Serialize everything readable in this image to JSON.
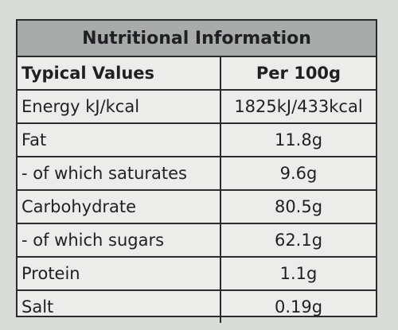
{
  "header": {
    "title": "Nutritional Information"
  },
  "table": {
    "columns": [
      "Typical Values",
      "Per 100g"
    ],
    "rows": [
      [
        "Energy kJ/kcal",
        "1825kJ/433kcal"
      ],
      [
        "Fat",
        "11.8g"
      ],
      [
        "- of which saturates",
        "9.6g"
      ],
      [
        "Carbohydrate",
        "80.5g"
      ],
      [
        "- of which sugars",
        "62.1g"
      ],
      [
        "Protein",
        "1.1g"
      ],
      [
        "Salt",
        "0.19g"
      ]
    ]
  }
}
